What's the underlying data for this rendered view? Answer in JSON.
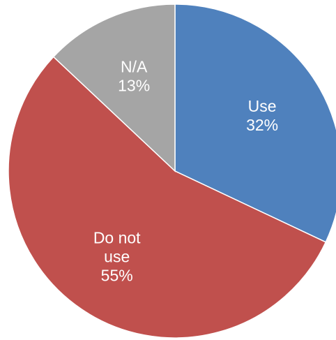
{
  "chart_data": {
    "type": "pie",
    "title": "",
    "legend": "none",
    "slices": [
      {
        "label_lines": [
          "Use"
        ],
        "percent_text": "32%",
        "value": 32,
        "color": "#4F81BD"
      },
      {
        "label_lines": [
          "Do not",
          "use"
        ],
        "percent_text": "55%",
        "value": 55,
        "color": "#C0504D"
      },
      {
        "label_lines": [
          "N/A"
        ],
        "percent_text": "13%",
        "value": 13,
        "color": "#A5A5A5"
      }
    ]
  }
}
